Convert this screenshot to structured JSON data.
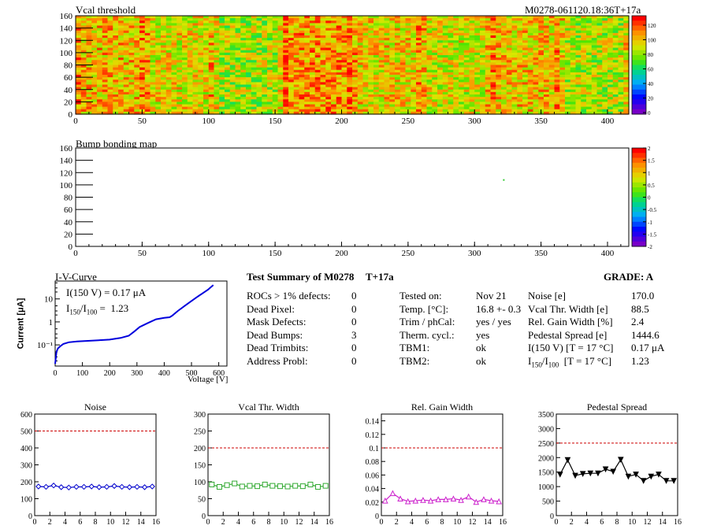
{
  "header": {
    "module_id": "M0278-061120.18:36T+17a"
  },
  "maps": [
    {
      "title": "Vcal threshold",
      "palette": "rainbow",
      "zscale_ticks": [
        "0",
        "20",
        "40",
        "60",
        "80",
        "100",
        "120"
      ],
      "xticks": [
        0,
        50,
        100,
        150,
        200,
        250,
        300,
        350,
        400
      ],
      "yticks": [
        0,
        20,
        40,
        60,
        80,
        100,
        120,
        140,
        160
      ],
      "xmax": 416,
      "ymax": 160
    },
    {
      "title": "Bump bonding map",
      "palette": "rainbow",
      "zscale_ticks": [
        "-2",
        "-1.5",
        "-1",
        "-0.5",
        "0",
        "0.5",
        "1",
        "1.5",
        "2"
      ],
      "xticks": [
        0,
        50,
        100,
        150,
        200,
        250,
        300,
        350,
        400
      ],
      "yticks": [
        0,
        20,
        40,
        60,
        80,
        100,
        120,
        140,
        160
      ],
      "xmax": 416,
      "ymax": 160,
      "points": [
        [
          322,
          108
        ]
      ]
    }
  ],
  "iv_curve": {
    "title": "I-V-Curve",
    "xlabel": "Voltage [V]",
    "ylabel": "Current [μA]",
    "annotation_1": "I(150 V) = 0.17 μA",
    "annotation_2_main": "I",
    "annotation_2_sub1": "150",
    "annotation_2_slash": "/I",
    "annotation_2_sub2": "100",
    "annotation_2_val": " =  1.23",
    "xticks": [
      0,
      100,
      200,
      300,
      400,
      500,
      600
    ],
    "yticks": [
      "10⁻¹",
      "1",
      "10"
    ],
    "type": "line",
    "x": [
      0,
      5,
      10,
      20,
      30,
      50,
      80,
      120,
      160,
      200,
      240,
      270,
      290,
      310,
      340,
      370,
      400,
      420,
      430,
      450,
      480,
      520,
      560,
      580
    ],
    "y": [
      0.015,
      0.05,
      0.07,
      0.09,
      0.11,
      0.13,
      0.14,
      0.15,
      0.16,
      0.17,
      0.2,
      0.25,
      0.38,
      0.6,
      0.9,
      1.3,
      1.5,
      1.6,
      1.9,
      3,
      5.5,
      12,
      25,
      40
    ]
  },
  "summary": {
    "title": "Test Summary of M0278",
    "title_suffix": "T+17a",
    "grade": "GRADE:  A",
    "col1": [
      {
        "label": "ROCs > 1% defects:",
        "value": "0"
      },
      {
        "label": "Dead Pixel:",
        "value": "0"
      },
      {
        "label": "Mask Defects:",
        "value": "0"
      },
      {
        "label": "Dead Bumps:",
        "value": "3"
      },
      {
        "label": "Dead Trimbits:",
        "value": "0"
      },
      {
        "label": "Address Probl:",
        "value": "0"
      }
    ],
    "col2": [
      {
        "label": "Tested on:",
        "value": "Nov 21"
      },
      {
        "label": "Temp. [°C]:",
        "value": "16.8 +- 0.3"
      },
      {
        "label": "Trim / phCal:",
        "value": "yes / yes"
      },
      {
        "label": "Therm. cycl.:",
        "value": "yes"
      },
      {
        "label": "TBM1:",
        "value": "ok"
      },
      {
        "label": "TBM2:",
        "value": "ok"
      }
    ],
    "col3": [
      {
        "label": "Noise [e]",
        "value": "170.0"
      },
      {
        "label": "Vcal Thr. Width [e]",
        "value": "88.5"
      },
      {
        "label": "Rel. Gain Width [%]",
        "value": "2.4"
      },
      {
        "label": "Pedestal Spread [e]",
        "value": "1444.6"
      },
      {
        "label": "I(150 V) [T = 17 °C]",
        "value": "0.17 μA"
      },
      {
        "label_main": "I",
        "label_sub1": "150",
        "label_slash": "/I",
        "label_sub2": "100",
        "label_rest": "  [T = 17 °C]",
        "value": "1.23"
      }
    ]
  },
  "chart_data": [
    {
      "type": "line",
      "title": "Noise",
      "x": [
        0,
        1,
        2,
        3,
        4,
        5,
        6,
        7,
        8,
        9,
        10,
        11,
        12,
        13,
        14,
        15
      ],
      "values": [
        172,
        170,
        178,
        168,
        166,
        170,
        170,
        172,
        168,
        170,
        175,
        170,
        168,
        170,
        168,
        172
      ],
      "ylim": [
        0,
        600
      ],
      "yticks": [
        0,
        100,
        200,
        300,
        400,
        500,
        600
      ],
      "xticks": [
        0,
        2,
        4,
        6,
        8,
        10,
        12,
        14,
        16
      ],
      "threshold": 500,
      "color": "#0000cc",
      "marker": "diamond"
    },
    {
      "type": "line",
      "title": "Vcal Thr. Width",
      "x": [
        0,
        1,
        2,
        3,
        4,
        5,
        6,
        7,
        8,
        9,
        10,
        11,
        12,
        13,
        14,
        15
      ],
      "values": [
        92,
        85,
        90,
        95,
        86,
        88,
        87,
        92,
        88,
        87,
        86,
        88,
        87,
        92,
        85,
        88
      ],
      "ylim": [
        0,
        300
      ],
      "yticks": [
        0,
        50,
        100,
        150,
        200,
        250,
        300
      ],
      "xticks": [
        0,
        2,
        4,
        6,
        8,
        10,
        12,
        14,
        16
      ],
      "threshold": 200,
      "color": "#33aa33",
      "marker": "square"
    },
    {
      "type": "line",
      "title": "Rel. Gain Width",
      "x": [
        0,
        1,
        2,
        3,
        4,
        5,
        6,
        7,
        8,
        9,
        10,
        11,
        12,
        13,
        14,
        15
      ],
      "values": [
        0.022,
        0.033,
        0.025,
        0.021,
        0.022,
        0.023,
        0.022,
        0.024,
        0.024,
        0.025,
        0.023,
        0.028,
        0.02,
        0.024,
        0.022,
        0.021
      ],
      "ylim": [
        0,
        0.15
      ],
      "yticks": [
        0,
        0.02,
        0.04,
        0.06,
        0.08,
        0.1,
        0.12,
        0.14
      ],
      "xticks": [
        0,
        2,
        4,
        6,
        8,
        10,
        12,
        14,
        16
      ],
      "threshold": 0.1,
      "color": "#cc22cc",
      "marker": "triangle"
    },
    {
      "type": "line",
      "title": "Pedestal Spread",
      "x": [
        0,
        1,
        2,
        3,
        4,
        5,
        6,
        7,
        8,
        9,
        10,
        11,
        12,
        13,
        14,
        15
      ],
      "values": [
        1420,
        1920,
        1380,
        1440,
        1460,
        1460,
        1600,
        1520,
        1930,
        1350,
        1420,
        1200,
        1350,
        1420,
        1200,
        1200
      ],
      "ylim": [
        0,
        3500
      ],
      "yticks": [
        0,
        500,
        1000,
        1500,
        2000,
        2500,
        3000,
        3500
      ],
      "xticks": [
        0,
        2,
        4,
        6,
        8,
        10,
        12,
        14,
        16
      ],
      "threshold": 2500,
      "color": "#000000",
      "marker": "triangle-down"
    }
  ]
}
